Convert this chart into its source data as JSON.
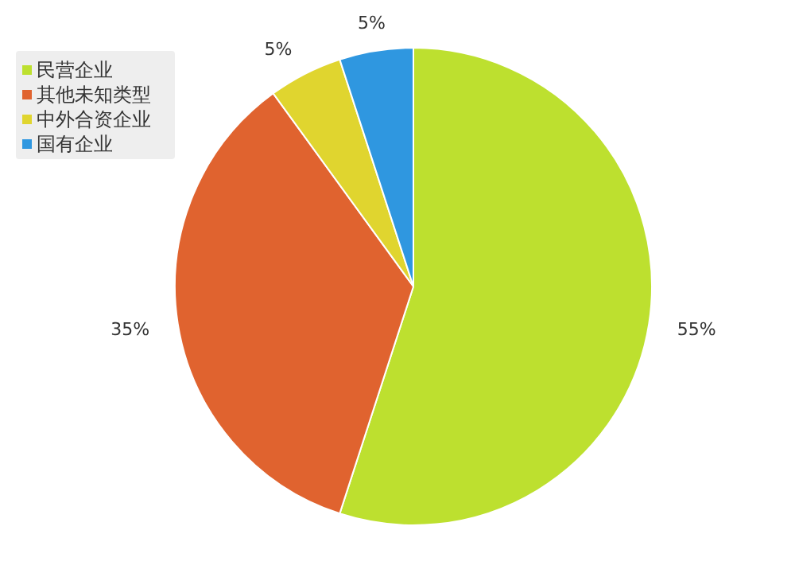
{
  "chart_data": {
    "type": "pie",
    "categories": [
      "民营企业",
      "其他未知类型",
      "中外合资企业",
      "国有企业"
    ],
    "values": [
      55,
      35,
      5,
      5
    ],
    "colors": [
      "#bde02f",
      "#e0632f",
      "#e0d52f",
      "#2f97e0"
    ],
    "value_labels": [
      "55%",
      "35%",
      "5%",
      "5%"
    ],
    "legend": "top left"
  }
}
